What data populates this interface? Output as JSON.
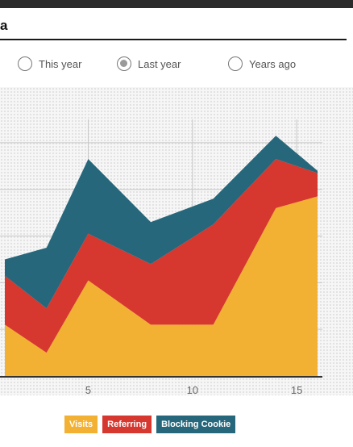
{
  "header": {
    "title": "a"
  },
  "range_options": [
    {
      "label": "This year",
      "selected": false
    },
    {
      "label": "Last year",
      "selected": true
    },
    {
      "label": "Years ago",
      "selected": false
    }
  ],
  "colors": {
    "visits": "#f2b132",
    "referring": "#d6372f",
    "blocking_cookie": "#27677b",
    "grid": "#c8c8c8",
    "axis": "#333333"
  },
  "chart_data": {
    "type": "area",
    "stacked": true,
    "x": [
      1,
      3,
      5,
      8,
      11,
      14,
      16
    ],
    "xticks": [
      5,
      10,
      15
    ],
    "xlim": [
      1,
      16
    ],
    "ylim": [
      0,
      11
    ],
    "grid": true,
    "legend_position": "bottom-center",
    "series": [
      {
        "name": "Visits",
        "values": [
          2.2,
          1.0,
          4.1,
          2.2,
          2.2,
          7.2,
          7.7
        ]
      },
      {
        "name": "Referring",
        "values": [
          2.1,
          1.9,
          2.0,
          2.6,
          4.3,
          2.1,
          1.0
        ]
      },
      {
        "name": "Blocking Cookie",
        "values": [
          0.7,
          2.6,
          3.2,
          1.8,
          1.1,
          1.0,
          0.1
        ]
      }
    ]
  }
}
